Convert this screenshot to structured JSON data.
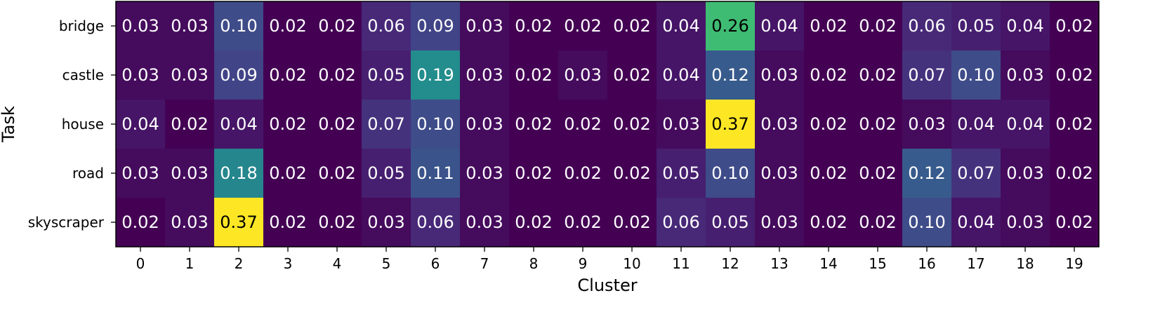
{
  "chart_data": {
    "type": "heatmap",
    "xlabel": "Cluster",
    "ylabel": "Task",
    "x_categories": [
      "0",
      "1",
      "2",
      "3",
      "4",
      "5",
      "6",
      "7",
      "8",
      "9",
      "10",
      "11",
      "12",
      "13",
      "14",
      "15",
      "16",
      "17",
      "18",
      "19"
    ],
    "y_categories": [
      "bridge",
      "castle",
      "house",
      "road",
      "skyscraper"
    ],
    "values": [
      [
        0.03,
        0.03,
        0.1,
        0.02,
        0.02,
        0.06,
        0.09,
        0.03,
        0.02,
        0.02,
        0.02,
        0.04,
        0.26,
        0.04,
        0.02,
        0.02,
        0.06,
        0.05,
        0.04,
        0.02
      ],
      [
        0.03,
        0.03,
        0.09,
        0.02,
        0.02,
        0.05,
        0.19,
        0.03,
        0.02,
        0.03,
        0.02,
        0.04,
        0.12,
        0.03,
        0.02,
        0.02,
        0.07,
        0.1,
        0.03,
        0.02
      ],
      [
        0.04,
        0.02,
        0.04,
        0.02,
        0.02,
        0.07,
        0.1,
        0.03,
        0.02,
        0.02,
        0.02,
        0.03,
        0.37,
        0.03,
        0.02,
        0.02,
        0.03,
        0.04,
        0.04,
        0.02
      ],
      [
        0.03,
        0.03,
        0.18,
        0.02,
        0.02,
        0.05,
        0.11,
        0.03,
        0.02,
        0.02,
        0.02,
        0.05,
        0.1,
        0.03,
        0.02,
        0.02,
        0.12,
        0.07,
        0.03,
        0.02
      ],
      [
        0.02,
        0.03,
        0.37,
        0.02,
        0.02,
        0.03,
        0.06,
        0.03,
        0.02,
        0.02,
        0.02,
        0.06,
        0.05,
        0.03,
        0.02,
        0.02,
        0.1,
        0.04,
        0.03,
        0.02
      ]
    ],
    "value_format": "0.00",
    "colormap": "viridis",
    "vmin": 0.02,
    "vmax": 0.37,
    "grid": false,
    "legend": "none"
  }
}
